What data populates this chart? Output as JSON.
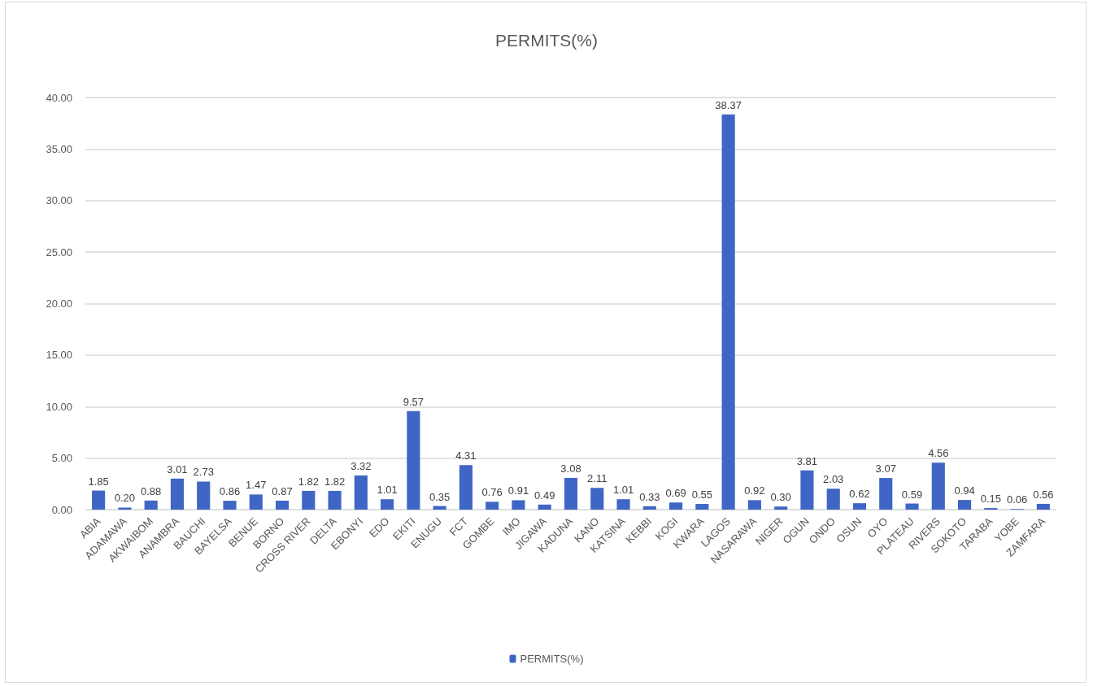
{
  "chart_data": {
    "type": "bar",
    "title": "PERMITS(%)",
    "categories": [
      "ABIA",
      "ADAMAWA",
      "AKWAIBOM",
      "ANAMBRA",
      "BAUCHI",
      "BAYELSA",
      "BENUE",
      "BORNO",
      "CROSS RIVER",
      "DELTA",
      "EBONYI",
      "EDO",
      "EKITI",
      "ENUGU",
      "FCT",
      "GOMBE",
      "IMO",
      "JIGAWA",
      "KADUNA",
      "KANO",
      "KATSINA",
      "KEBBI",
      "KOGI",
      "KWARA",
      "LAGOS",
      "NASARAWA",
      "NIGER",
      "OGUN",
      "ONDO",
      "OSUN",
      "OYO",
      "PLATEAU",
      "RIVERS",
      "SOKOTO",
      "TARABA",
      "YOBE",
      "ZAMFARA"
    ],
    "series": [
      {
        "name": "PERMITS(%)",
        "color": "#3f66c4",
        "values": [
          1.85,
          0.2,
          0.88,
          3.01,
          2.73,
          0.86,
          1.47,
          0.87,
          1.82,
          1.82,
          3.32,
          1.01,
          9.57,
          0.35,
          4.31,
          0.76,
          0.91,
          0.49,
          3.08,
          2.11,
          1.01,
          0.33,
          0.69,
          0.55,
          38.37,
          0.92,
          0.3,
          3.81,
          2.03,
          0.62,
          3.07,
          0.59,
          4.56,
          0.94,
          0.15,
          0.06,
          0.56
        ],
        "value_labels": [
          "1.85",
          "0.20",
          "0.88",
          "3.01",
          "2.73",
          "0.86",
          "1.47",
          "0.87",
          "1.82",
          "1.82",
          "3.32",
          "1.01",
          "9.57",
          "0.35",
          "4.31",
          "0.76",
          "0.91",
          "0.49",
          "3.08",
          "2.11",
          "1.01",
          "0.33",
          "0.69",
          "0.55",
          "38.37",
          "0.92",
          "0.30",
          "3.81",
          "2.03",
          "0.62",
          "3.07",
          "0.59",
          "4.56",
          "0.94",
          "0.15",
          "0.06",
          "0.56"
        ]
      }
    ],
    "ylim": [
      0,
      40
    ],
    "yticks": [
      {
        "value": 0,
        "label": "0.00"
      },
      {
        "value": 5,
        "label": "5.00"
      },
      {
        "value": 10,
        "label": "10.00"
      },
      {
        "value": 15,
        "label": "15.00"
      },
      {
        "value": 20,
        "label": "20.00"
      },
      {
        "value": 25,
        "label": "25.00"
      },
      {
        "value": 30,
        "label": "30.00"
      },
      {
        "value": 35,
        "label": "35.00"
      },
      {
        "value": 40,
        "label": "40.00"
      }
    ],
    "grid": "y",
    "legend": "bottom"
  }
}
